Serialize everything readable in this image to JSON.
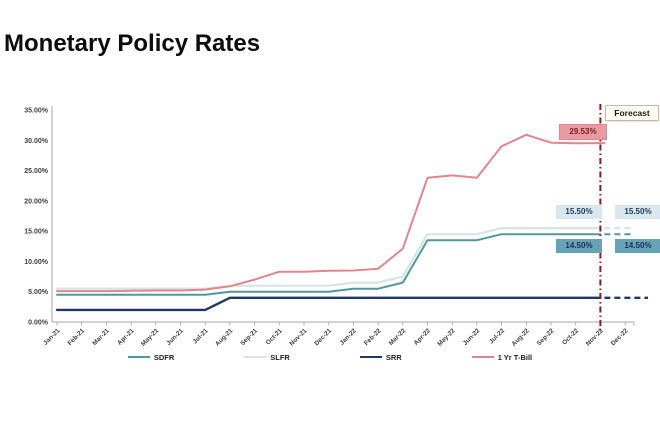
{
  "title": "Monetary Policy Rates",
  "forecast_label": "Forecast",
  "annotations": {
    "tbill_final": "29.53%",
    "slfr_final": "15.50%",
    "sdfr_final": "14.50%",
    "slfr_forecast": "15.50%",
    "sdfr_forecast": "14.50%"
  },
  "colors": {
    "sdfr": "#4E99A0",
    "slfr": "#D6E4E5",
    "srr": "#1F3864",
    "tbill": "#E2858D",
    "forecast_divider": "#8C1A1E",
    "axis": "#A6A6A6",
    "axis_text": "#404040"
  },
  "chart_data": {
    "type": "line",
    "title": "Monetary Policy Rates",
    "xlabel": "",
    "ylabel": "",
    "ylim": [
      0,
      35
    ],
    "ytick_step": 5,
    "ytick_labels": [
      "0.00%",
      "5.00%",
      "10.00%",
      "15.00%",
      "20.00%",
      "25.00%",
      "30.00%",
      "35.00%"
    ],
    "grid": false,
    "legend_position": "bottom",
    "forecast_divider_at": "Nov-22",
    "forecast_note": "Values after Nov-22 are forecast (dashed)",
    "categories": [
      "Jan-21",
      "Feb-21",
      "Mar-21",
      "Apr-21",
      "May-21",
      "Jun-21",
      "Jul-21",
      "Aug-21",
      "Sep-21",
      "Oct-21",
      "Nov-21",
      "Dec-21",
      "Jan-22",
      "Feb-22",
      "Mar-22",
      "Apr-22",
      "May-22",
      "Jun-22",
      "Jul-22",
      "Aug-22",
      "Sep-22",
      "Oct-22",
      "Nov-22",
      "Dec-22"
    ],
    "series": [
      {
        "name": "SLFR",
        "color": "#D6E4E5",
        "width": 2.2,
        "forecast_from": 22,
        "values": [
          5.5,
          5.5,
          5.5,
          5.5,
          5.5,
          5.5,
          5.5,
          6.0,
          6.0,
          6.0,
          6.0,
          6.0,
          6.5,
          6.5,
          7.5,
          14.5,
          14.5,
          14.5,
          15.5,
          15.5,
          15.5,
          15.5,
          15.5,
          15.5
        ]
      },
      {
        "name": "SDFR",
        "color": "#4E99A0",
        "width": 2.0,
        "forecast_from": 22,
        "values": [
          4.5,
          4.5,
          4.5,
          4.5,
          4.5,
          4.5,
          4.5,
          5.0,
          5.0,
          5.0,
          5.0,
          5.0,
          5.5,
          5.5,
          6.5,
          13.5,
          13.5,
          13.5,
          14.5,
          14.5,
          14.5,
          14.5,
          14.5,
          14.5
        ]
      },
      {
        "name": "SRR",
        "color": "#1F3864",
        "width": 2.4,
        "forecast_from": 22,
        "values": [
          2,
          2,
          2,
          2,
          2,
          2,
          2,
          4,
          4,
          4,
          4,
          4,
          4,
          4,
          4,
          4,
          4,
          4,
          4,
          4,
          4,
          4,
          4,
          4
        ]
      },
      {
        "name": "1 Yr T-Bill",
        "color": "#E2858D",
        "width": 2.0,
        "values": [
          5.1,
          5.1,
          5.1,
          5.15,
          5.2,
          5.2,
          5.35,
          5.9,
          7.0,
          8.3,
          8.3,
          8.45,
          8.5,
          8.8,
          12.1,
          23.8,
          24.2,
          23.8,
          29.0,
          30.9,
          29.6,
          29.5,
          29.53
        ]
      }
    ],
    "legend_order": [
      "SDFR",
      "SLFR",
      "SRR",
      "1 Yr T-Bill"
    ]
  }
}
